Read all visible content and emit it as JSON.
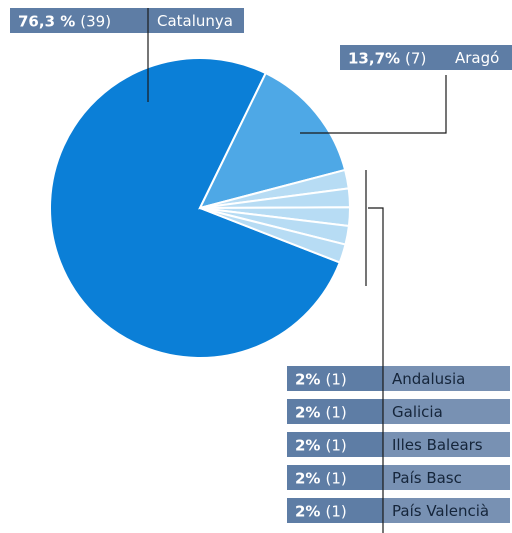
{
  "chart_data": {
    "type": "pie",
    "categories": [
      "Catalunya",
      "Aragó",
      "Andalusia",
      "Galicia",
      "Illes Balears",
      "País Basc",
      "País Valencià"
    ],
    "values": [
      76.3,
      13.7,
      2,
      2,
      2,
      2,
      2
    ],
    "value_labels": [
      "76,3 %",
      "13,7%",
      "2%",
      "2%",
      "2%",
      "2%",
      "2%"
    ],
    "counts": [
      39,
      7,
      1,
      1,
      1,
      1,
      1
    ],
    "count_labels": [
      "(39)",
      "(7)",
      "(1)",
      "(1)",
      "(1)",
      "(1)",
      "(1)"
    ],
    "colors": [
      "#0b7fd7",
      "#4ea8e6",
      "#b7dcf4",
      "#b7dcf4",
      "#b7dcf4",
      "#b7dcf4",
      "#b7dcf4"
    ]
  }
}
